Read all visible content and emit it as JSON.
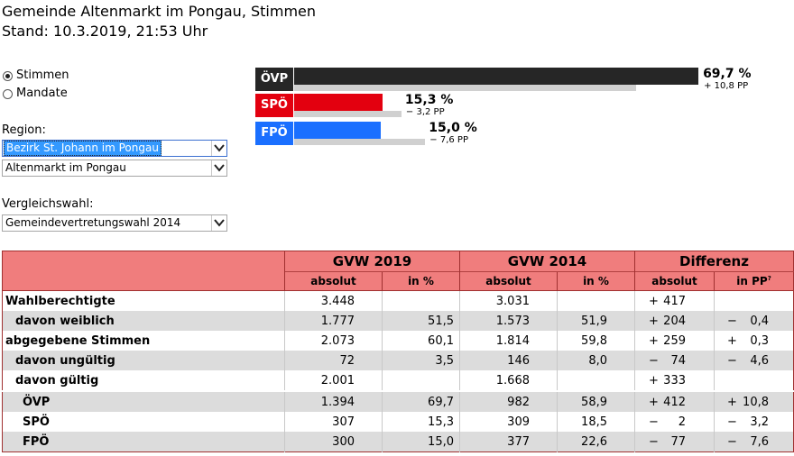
{
  "header": {
    "title": "Gemeinde Altenmarkt im Pongau, Stimmen",
    "stand": "Stand: 10.3.2019, 21:53 Uhr"
  },
  "view_mode": {
    "options": [
      {
        "label": "Stimmen",
        "selected": true
      },
      {
        "label": "Mandate",
        "selected": false
      }
    ]
  },
  "region": {
    "label": "Region:",
    "bezirk": "Bezirk St. Johann im Pongau",
    "gemeinde": "Altenmarkt im Pongau"
  },
  "vergleich": {
    "label": "Vergleichswahl:",
    "value": "Gemeindevertretungswahl 2014"
  },
  "colors": {
    "oevp": "#262626",
    "spoe": "#e3000f",
    "fpoe": "#1a6fff",
    "header_bg": "#f07d7d",
    "shade": "#dcdcdc"
  },
  "chart_data": {
    "type": "bar",
    "categories": [
      "ÖVP",
      "SPÖ",
      "FPÖ"
    ],
    "values": [
      69.7,
      15.3,
      15.0
    ],
    "previous_values": [
      58.9,
      18.5,
      22.6
    ],
    "value_labels": [
      "69,7 %",
      "15,3 %",
      "15,0 %"
    ],
    "diff_labels": [
      "+ 10,8 PP",
      "− 3,2 PP",
      "− 7,6 PP"
    ],
    "xlim": [
      0,
      100
    ]
  },
  "table": {
    "group_headers": [
      "GVW 2019",
      "GVW 2014",
      "Differenz"
    ],
    "sub_headers": [
      "absolut",
      "in %",
      "absolut",
      "in %",
      "absolut",
      "in PP"
    ],
    "sub_header_footnote": "?",
    "rows": [
      {
        "label": "Wahlberechtigte",
        "a19": "3.448",
        "p19": "",
        "a14": "3.031",
        "p14": "",
        "ds": "+",
        "dv": "417",
        "pps": "",
        "ppv": ""
      },
      {
        "label": "davon weiblich",
        "a19": "1.777",
        "p19": "51,5",
        "a14": "1.573",
        "p14": "51,9",
        "ds": "+",
        "dv": "204",
        "pps": "−",
        "ppv": "0,4"
      },
      {
        "label": "abgegebene Stimmen",
        "a19": "2.073",
        "p19": "60,1",
        "a14": "1.814",
        "p14": "59,8",
        "ds": "+",
        "dv": "259",
        "pps": "+",
        "ppv": "0,3"
      },
      {
        "label": "davon ungültig",
        "a19": "72",
        "p19": "3,5",
        "a14": "146",
        "p14": "8,0",
        "ds": "−",
        "dv": "74",
        "pps": "−",
        "ppv": "4,6"
      },
      {
        "label": "davon gültig",
        "a19": "2.001",
        "p19": "",
        "a14": "1.668",
        "p14": "",
        "ds": "+",
        "dv": "333",
        "pps": "",
        "ppv": ""
      },
      {
        "label": "ÖVP",
        "a19": "1.394",
        "p19": "69,7",
        "a14": "982",
        "p14": "58,9",
        "ds": "+",
        "dv": "412",
        "pps": "+",
        "ppv": "10,8"
      },
      {
        "label": "SPÖ",
        "a19": "307",
        "p19": "15,3",
        "a14": "309",
        "p14": "18,5",
        "ds": "−",
        "dv": "2",
        "pps": "−",
        "ppv": "3,2"
      },
      {
        "label": "FPÖ",
        "a19": "300",
        "p19": "15,0",
        "a14": "377",
        "p14": "22,6",
        "ds": "−",
        "dv": "77",
        "pps": "−",
        "ppv": "7,6"
      }
    ]
  }
}
